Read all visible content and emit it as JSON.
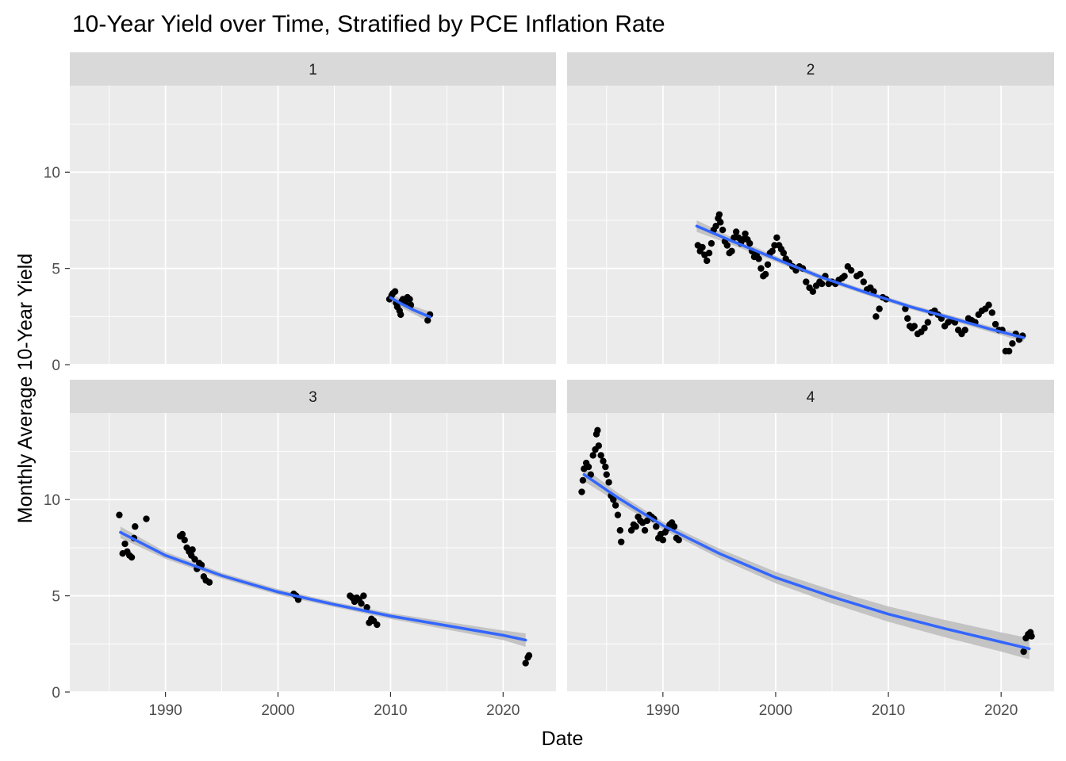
{
  "chart_data": {
    "type": "scatter",
    "title": "10-Year Yield over Time, Stratified by PCE Inflation Rate",
    "xlabel": "Date",
    "ylabel": "Monthly Average 10-Year Yield",
    "xlim": [
      1981.5,
      2024.7
    ],
    "ylim": [
      0,
      14.5
    ],
    "x_ticks": [
      "1990",
      "2000",
      "2010",
      "2020"
    ],
    "x_tick_values": [
      1990,
      2000,
      2010,
      2020
    ],
    "y_ticks": [
      "0",
      "5",
      "10"
    ],
    "y_tick_values": [
      0,
      5,
      10
    ],
    "grid": true,
    "colors": {
      "panel_bg": "#ebebeb",
      "strip_bg": "#d9d9d9",
      "grid": "#ffffff",
      "points": "#000000",
      "fit_line": "#3366ff",
      "band": "#bfbfbf"
    },
    "facets": [
      {
        "label": "1",
        "points": [
          [
            2009.9,
            3.4
          ],
          [
            2010.1,
            3.6
          ],
          [
            2010.2,
            3.7
          ],
          [
            2010.4,
            3.8
          ],
          [
            2010.5,
            3.2
          ],
          [
            2010.6,
            3.0
          ],
          [
            2010.8,
            2.8
          ],
          [
            2010.9,
            2.6
          ],
          [
            2011.0,
            3.3
          ],
          [
            2011.1,
            3.4
          ],
          [
            2011.3,
            3.2
          ],
          [
            2011.5,
            3.5
          ],
          [
            2011.7,
            3.4
          ],
          [
            2011.8,
            3.1
          ],
          [
            2013.3,
            2.3
          ],
          [
            2013.5,
            2.6
          ]
        ],
        "fit": [
          [
            2010.0,
            3.48
          ],
          [
            2011.0,
            3.15
          ],
          [
            2012.0,
            2.85
          ],
          [
            2013.0,
            2.6
          ],
          [
            2013.5,
            2.48
          ]
        ],
        "band": [
          [
            2010.0,
            3.2,
            3.76
          ],
          [
            2011.0,
            2.95,
            3.35
          ],
          [
            2012.0,
            2.65,
            3.05
          ],
          [
            2013.0,
            2.35,
            2.85
          ],
          [
            2013.5,
            2.2,
            2.76
          ]
        ]
      },
      {
        "label": "2",
        "points": [
          [
            1993.1,
            6.2
          ],
          [
            1993.3,
            5.9
          ],
          [
            1993.5,
            6.1
          ],
          [
            1993.7,
            5.7
          ],
          [
            1993.9,
            5.4
          ],
          [
            1994.1,
            5.8
          ],
          [
            1994.3,
            6.3
          ],
          [
            1994.5,
            7.0
          ],
          [
            1994.7,
            7.2
          ],
          [
            1994.9,
            7.6
          ],
          [
            1995.0,
            7.8
          ],
          [
            1995.1,
            7.4
          ],
          [
            1995.3,
            7.0
          ],
          [
            1995.5,
            6.4
          ],
          [
            1995.7,
            6.2
          ],
          [
            1995.9,
            5.8
          ],
          [
            1996.1,
            5.9
          ],
          [
            1996.3,
            6.6
          ],
          [
            1996.5,
            6.9
          ],
          [
            1996.7,
            6.6
          ],
          [
            1996.9,
            6.3
          ],
          [
            1997.1,
            6.5
          ],
          [
            1997.3,
            6.8
          ],
          [
            1997.5,
            6.5
          ],
          [
            1997.7,
            6.3
          ],
          [
            1997.9,
            5.9
          ],
          [
            1998.1,
            5.6
          ],
          [
            1998.3,
            5.7
          ],
          [
            1998.5,
            5.5
          ],
          [
            1998.7,
            5.0
          ],
          [
            1998.9,
            4.6
          ],
          [
            1999.1,
            4.7
          ],
          [
            1999.3,
            5.2
          ],
          [
            1999.5,
            5.8
          ],
          [
            1999.7,
            5.9
          ],
          [
            1999.9,
            6.2
          ],
          [
            2000.1,
            6.6
          ],
          [
            2000.3,
            6.2
          ],
          [
            2000.5,
            6.0
          ],
          [
            2000.7,
            5.8
          ],
          [
            2000.9,
            5.5
          ],
          [
            2001.2,
            5.3
          ],
          [
            2001.5,
            5.1
          ],
          [
            2001.8,
            4.9
          ],
          [
            2002.1,
            5.1
          ],
          [
            2002.4,
            5.0
          ],
          [
            2002.7,
            4.3
          ],
          [
            2003.0,
            4.0
          ],
          [
            2003.3,
            3.8
          ],
          [
            2003.6,
            4.1
          ],
          [
            2003.9,
            4.3
          ],
          [
            2004.1,
            4.2
          ],
          [
            2004.4,
            4.6
          ],
          [
            2004.7,
            4.2
          ],
          [
            2005.0,
            4.3
          ],
          [
            2005.3,
            4.2
          ],
          [
            2005.6,
            4.4
          ],
          [
            2005.9,
            4.5
          ],
          [
            2006.1,
            4.6
          ],
          [
            2006.4,
            5.1
          ],
          [
            2006.7,
            4.9
          ],
          [
            2007.2,
            4.6
          ],
          [
            2007.5,
            4.7
          ],
          [
            2007.8,
            4.3
          ],
          [
            2008.1,
            3.9
          ],
          [
            2008.4,
            4.0
          ],
          [
            2008.7,
            3.8
          ],
          [
            2008.9,
            2.5
          ],
          [
            2009.2,
            2.9
          ],
          [
            2009.5,
            3.5
          ],
          [
            2009.8,
            3.4
          ],
          [
            2011.5,
            2.9
          ],
          [
            2011.7,
            2.4
          ],
          [
            2011.9,
            2.0
          ],
          [
            2012.1,
            1.9
          ],
          [
            2012.3,
            2.0
          ],
          [
            2012.6,
            1.6
          ],
          [
            2012.9,
            1.7
          ],
          [
            2013.2,
            1.9
          ],
          [
            2013.5,
            2.2
          ],
          [
            2013.8,
            2.7
          ],
          [
            2014.1,
            2.8
          ],
          [
            2014.4,
            2.6
          ],
          [
            2014.7,
            2.4
          ],
          [
            2015.0,
            2.0
          ],
          [
            2015.3,
            2.2
          ],
          [
            2015.6,
            2.3
          ],
          [
            2015.9,
            2.2
          ],
          [
            2016.2,
            1.8
          ],
          [
            2016.5,
            1.6
          ],
          [
            2016.8,
            1.8
          ],
          [
            2017.1,
            2.4
          ],
          [
            2017.4,
            2.3
          ],
          [
            2017.7,
            2.2
          ],
          [
            2018.0,
            2.6
          ],
          [
            2018.3,
            2.8
          ],
          [
            2018.6,
            2.9
          ],
          [
            2018.9,
            3.1
          ],
          [
            2019.2,
            2.7
          ],
          [
            2019.5,
            2.1
          ],
          [
            2019.8,
            1.8
          ],
          [
            2020.1,
            1.8
          ],
          [
            2020.4,
            0.7
          ],
          [
            2020.7,
            0.7
          ],
          [
            2021.0,
            1.1
          ],
          [
            2021.3,
            1.6
          ],
          [
            2021.6,
            1.3
          ],
          [
            2021.9,
            1.5
          ]
        ],
        "fit": [
          [
            1993.0,
            7.2
          ],
          [
            1996.0,
            6.45
          ],
          [
            2000.0,
            5.5
          ],
          [
            2004.0,
            4.55
          ],
          [
            2008.0,
            3.75
          ],
          [
            2012.0,
            3.0
          ],
          [
            2016.0,
            2.35
          ],
          [
            2019.0,
            1.85
          ],
          [
            2022.0,
            1.4
          ]
        ],
        "band": [
          [
            1993.0,
            6.9,
            7.5
          ],
          [
            1996.0,
            6.25,
            6.65
          ],
          [
            2000.0,
            5.35,
            5.65
          ],
          [
            2004.0,
            4.42,
            4.68
          ],
          [
            2008.0,
            3.63,
            3.87
          ],
          [
            2012.0,
            2.88,
            3.12
          ],
          [
            2016.0,
            2.22,
            2.48
          ],
          [
            2019.0,
            1.7,
            2.0
          ],
          [
            2022.0,
            1.2,
            1.6
          ]
        ]
      },
      {
        "label": "3",
        "points": [
          [
            1985.9,
            9.2
          ],
          [
            1986.2,
            7.2
          ],
          [
            1986.4,
            7.7
          ],
          [
            1986.6,
            7.3
          ],
          [
            1986.8,
            7.1
          ],
          [
            1987.0,
            7.0
          ],
          [
            1987.2,
            8.0
          ],
          [
            1987.3,
            8.6
          ],
          [
            1988.3,
            9.0
          ],
          [
            1991.3,
            8.1
          ],
          [
            1991.5,
            8.2
          ],
          [
            1991.7,
            7.9
          ],
          [
            1991.9,
            7.5
          ],
          [
            1992.1,
            7.3
          ],
          [
            1992.3,
            7.1
          ],
          [
            1992.4,
            7.4
          ],
          [
            1992.6,
            6.9
          ],
          [
            1992.8,
            6.4
          ],
          [
            1993.0,
            6.7
          ],
          [
            1993.2,
            6.6
          ],
          [
            1993.4,
            6.0
          ],
          [
            1993.6,
            5.8
          ],
          [
            1993.9,
            5.7
          ],
          [
            2001.4,
            5.1
          ],
          [
            2001.6,
            5.0
          ],
          [
            2001.8,
            4.8
          ],
          [
            2006.4,
            5.0
          ],
          [
            2006.6,
            4.9
          ],
          [
            2006.8,
            4.7
          ],
          [
            2007.0,
            4.9
          ],
          [
            2007.2,
            4.8
          ],
          [
            2007.4,
            4.6
          ],
          [
            2007.6,
            5.0
          ],
          [
            2007.9,
            4.4
          ],
          [
            2008.1,
            3.6
          ],
          [
            2008.3,
            3.8
          ],
          [
            2008.5,
            3.7
          ],
          [
            2008.8,
            3.5
          ],
          [
            2022.0,
            1.5
          ],
          [
            2022.2,
            1.8
          ],
          [
            2022.3,
            1.9
          ]
        ],
        "fit": [
          [
            1986.0,
            8.3
          ],
          [
            1990.0,
            7.1
          ],
          [
            1995.0,
            6.05
          ],
          [
            2000.0,
            5.2
          ],
          [
            2005.0,
            4.55
          ],
          [
            2010.0,
            3.95
          ],
          [
            2015.0,
            3.45
          ],
          [
            2020.0,
            2.95
          ],
          [
            2022.0,
            2.7
          ]
        ],
        "band": [
          [
            1986.0,
            8.0,
            8.6
          ],
          [
            1990.0,
            6.92,
            7.28
          ],
          [
            1995.0,
            5.9,
            6.2
          ],
          [
            2000.0,
            5.05,
            5.35
          ],
          [
            2005.0,
            4.42,
            4.68
          ],
          [
            2010.0,
            3.8,
            4.1
          ],
          [
            2015.0,
            3.25,
            3.65
          ],
          [
            2020.0,
            2.7,
            3.2
          ],
          [
            2022.0,
            2.35,
            3.05
          ]
        ]
      },
      {
        "label": "4",
        "points": [
          [
            1982.8,
            10.4
          ],
          [
            1982.9,
            11.0
          ],
          [
            1983.0,
            11.6
          ],
          [
            1983.2,
            11.9
          ],
          [
            1983.4,
            11.7
          ],
          [
            1983.6,
            11.3
          ],
          [
            1983.8,
            12.3
          ],
          [
            1984.0,
            12.6
          ],
          [
            1984.1,
            13.4
          ],
          [
            1984.2,
            13.6
          ],
          [
            1984.3,
            12.8
          ],
          [
            1984.5,
            12.3
          ],
          [
            1984.7,
            12.0
          ],
          [
            1984.9,
            11.7
          ],
          [
            1985.0,
            11.3
          ],
          [
            1985.2,
            10.9
          ],
          [
            1985.4,
            10.2
          ],
          [
            1985.6,
            10.0
          ],
          [
            1985.8,
            9.7
          ],
          [
            1986.0,
            9.2
          ],
          [
            1986.2,
            8.4
          ],
          [
            1986.3,
            7.8
          ],
          [
            1987.2,
            8.4
          ],
          [
            1987.4,
            8.7
          ],
          [
            1987.6,
            8.6
          ],
          [
            1987.8,
            9.1
          ],
          [
            1988.0,
            8.9
          ],
          [
            1988.2,
            8.8
          ],
          [
            1988.4,
            8.4
          ],
          [
            1988.6,
            8.9
          ],
          [
            1988.8,
            9.2
          ],
          [
            1989.0,
            9.1
          ],
          [
            1989.2,
            9.0
          ],
          [
            1989.4,
            8.6
          ],
          [
            1989.6,
            8.0
          ],
          [
            1989.8,
            8.2
          ],
          [
            1990.0,
            7.9
          ],
          [
            1990.2,
            8.3
          ],
          [
            1990.4,
            8.5
          ],
          [
            1990.6,
            8.7
          ],
          [
            1990.8,
            8.8
          ],
          [
            1991.0,
            8.6
          ],
          [
            1991.2,
            8.0
          ],
          [
            1991.4,
            7.9
          ],
          [
            2022.0,
            2.1
          ],
          [
            2022.2,
            2.8
          ],
          [
            2022.4,
            3.0
          ],
          [
            2022.6,
            3.1
          ],
          [
            2022.7,
            2.9
          ]
        ],
        "fit": [
          [
            1983.0,
            11.3
          ],
          [
            1986.0,
            10.1
          ],
          [
            1990.0,
            8.65
          ],
          [
            1995.0,
            7.2
          ],
          [
            2000.0,
            5.95
          ],
          [
            2005.0,
            4.95
          ],
          [
            2010.0,
            4.05
          ],
          [
            2015.0,
            3.3
          ],
          [
            2020.0,
            2.6
          ],
          [
            2022.5,
            2.25
          ]
        ],
        "band": [
          [
            1983.0,
            10.95,
            11.65
          ],
          [
            1986.0,
            9.85,
            10.35
          ],
          [
            1990.0,
            8.45,
            8.85
          ],
          [
            1995.0,
            6.95,
            7.45
          ],
          [
            2000.0,
            5.65,
            6.25
          ],
          [
            2005.0,
            4.6,
            5.3
          ],
          [
            2010.0,
            3.65,
            4.45
          ],
          [
            2015.0,
            2.85,
            3.75
          ],
          [
            2020.0,
            2.1,
            3.1
          ],
          [
            2022.5,
            1.7,
            2.8
          ]
        ]
      }
    ]
  }
}
